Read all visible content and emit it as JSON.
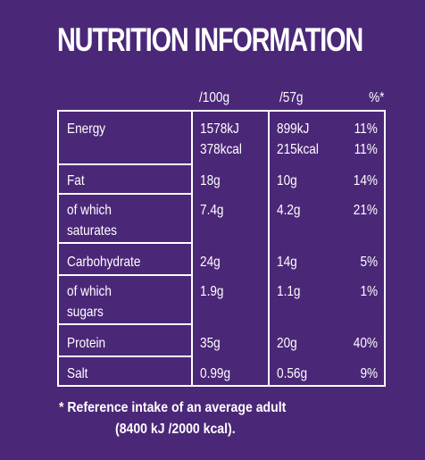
{
  "title": "NUTRITION INFORMATION",
  "headers": {
    "per100": "/100g",
    "per57": "/57g",
    "pct": "%*"
  },
  "rows": [
    {
      "label": [
        "Energy"
      ],
      "per100": [
        "1578kJ",
        "378kcal"
      ],
      "per57": [
        "899kJ",
        "215kcal"
      ],
      "pct": [
        "11%",
        "11%"
      ]
    },
    {
      "label": [
        "Fat"
      ],
      "per100": [
        "18g"
      ],
      "per57": [
        "10g"
      ],
      "pct": [
        "14%"
      ]
    },
    {
      "label": [
        "of which",
        "saturates"
      ],
      "per100": [
        "7.4g"
      ],
      "per57": [
        "4.2g"
      ],
      "pct": [
        "21%"
      ]
    },
    {
      "label": [
        "Carbohydrate"
      ],
      "per100": [
        "24g"
      ],
      "per57": [
        "14g"
      ],
      "pct": [
        "5%"
      ]
    },
    {
      "label": [
        "of which",
        "sugars"
      ],
      "per100": [
        "1.9g"
      ],
      "per57": [
        "1.1g"
      ],
      "pct": [
        "1%"
      ]
    },
    {
      "label": [
        "Protein"
      ],
      "per100": [
        "35g"
      ],
      "per57": [
        "20g"
      ],
      "pct": [
        "40%"
      ]
    },
    {
      "label": [
        "Salt"
      ],
      "per100": [
        "0.99g"
      ],
      "per57": [
        "0.56g"
      ],
      "pct": [
        "9%"
      ]
    }
  ],
  "footnote": {
    "line1": "* Reference intake of an average adult",
    "line2": "(8400 kJ /2000 kcal)."
  },
  "colors": {
    "background": "#4b2778",
    "text": "#ffffff"
  }
}
